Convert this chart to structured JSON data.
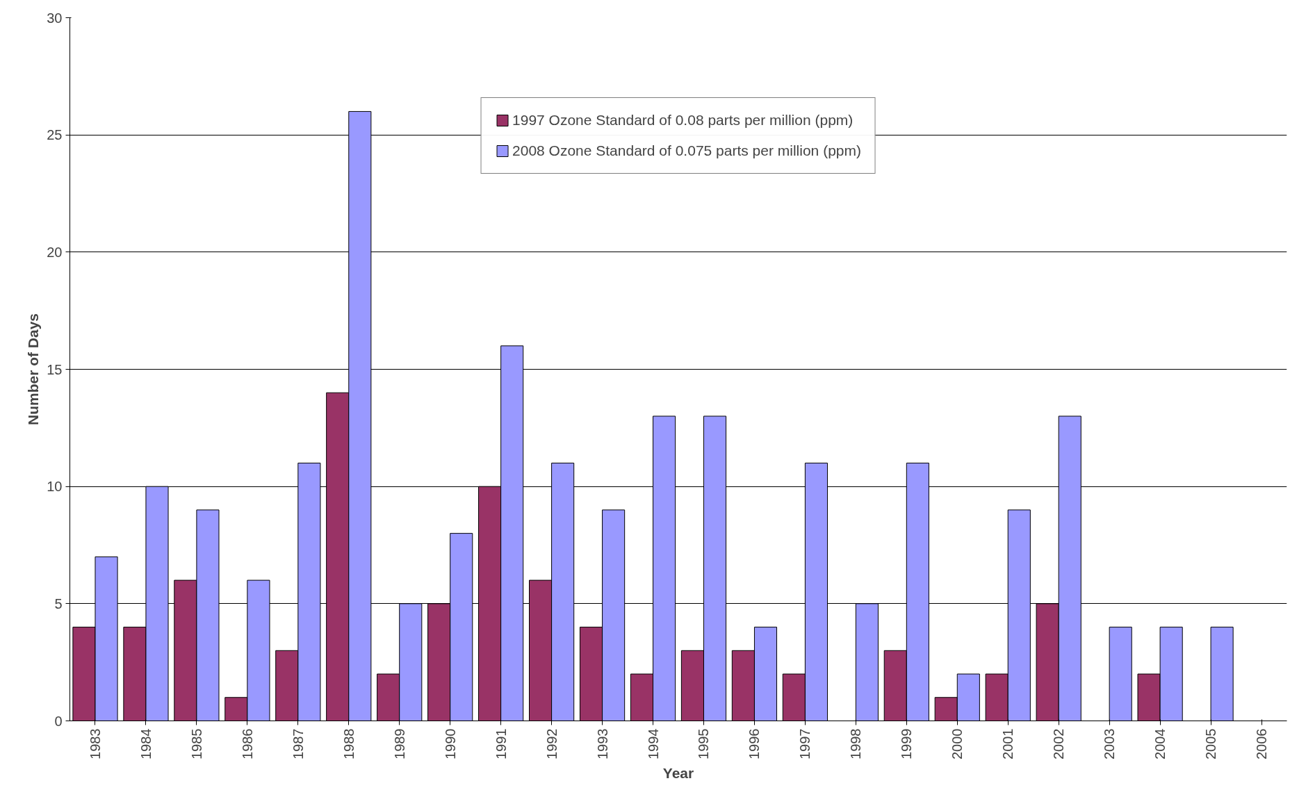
{
  "chart_data": {
    "type": "bar",
    "xlabel": "Year",
    "ylabel": "Number of Days",
    "categories": [
      "1983",
      "1984",
      "1985",
      "1986",
      "1987",
      "1988",
      "1989",
      "1990",
      "1991",
      "1992",
      "1993",
      "1994",
      "1995",
      "1996",
      "1997",
      "1998",
      "1999",
      "2000",
      "2001",
      "2002",
      "2003",
      "2004",
      "2005",
      "2006"
    ],
    "series": [
      {
        "name": "1997 Ozone Standard of 0.08 parts per million (ppm)",
        "color": "#993366",
        "values": [
          4,
          4,
          6,
          1,
          3,
          14,
          2,
          5,
          10,
          6,
          4,
          2,
          3,
          3,
          2,
          0,
          3,
          1,
          2,
          5,
          0,
          2,
          0,
          0
        ]
      },
      {
        "name": "2008 Ozone Standard of 0.075 parts per million (ppm)",
        "color": "#9999ff",
        "values": [
          7,
          10,
          9,
          6,
          11,
          26,
          5,
          8,
          16,
          11,
          9,
          13,
          13,
          4,
          11,
          5,
          11,
          2,
          9,
          13,
          4,
          4,
          4,
          0
        ]
      }
    ],
    "ylim": [
      0,
      30
    ],
    "yticks": [
      0,
      5,
      10,
      15,
      20,
      25,
      30
    ],
    "grid": "y",
    "legend": "top"
  }
}
